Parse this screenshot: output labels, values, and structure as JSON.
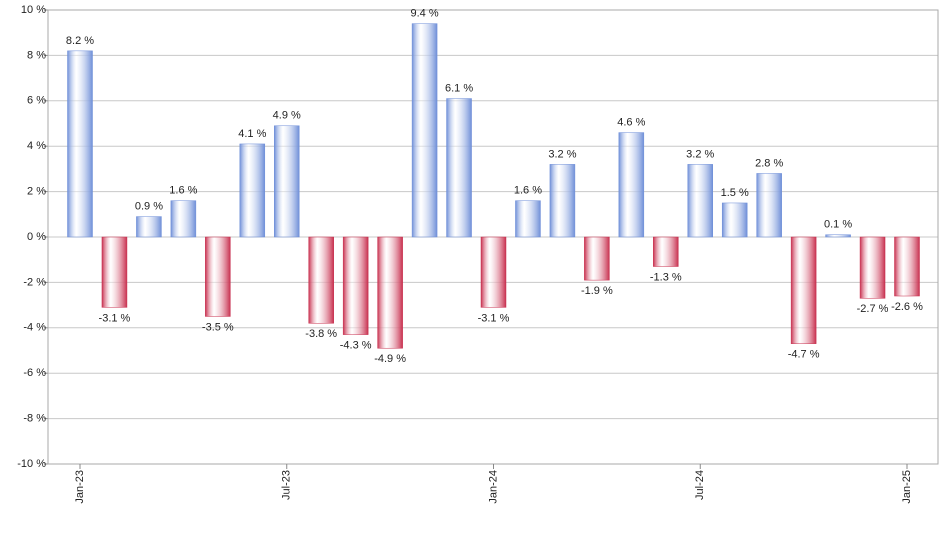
{
  "chart_data": {
    "type": "bar",
    "categories": [
      "Jan-23",
      null,
      null,
      null,
      null,
      null,
      "Jul-23",
      null,
      null,
      null,
      null,
      null,
      "Jan-24",
      null,
      null,
      null,
      null,
      null,
      "Jul-24",
      null,
      null,
      null,
      null,
      null,
      "Jan-25"
    ],
    "values": [
      8.2,
      -3.1,
      0.9,
      1.6,
      -3.5,
      4.1,
      4.9,
      -3.8,
      -4.3,
      -4.9,
      9.4,
      6.1,
      -3.1,
      1.6,
      3.2,
      -1.9,
      4.6,
      -1.3,
      3.2,
      1.5,
      2.8,
      -4.7,
      0.1,
      -2.7,
      -2.6
    ],
    "value_labels": [
      "8.2 %",
      "-3.1 %",
      "0.9 %",
      "1.6 %",
      "-3.5 %",
      "4.1 %",
      "4.9 %",
      "-3.8 %",
      "-4.3 %",
      "-4.9 %",
      "9.4 %",
      "6.1 %",
      "-3.1 %",
      "1.6 %",
      "3.2 %",
      "-1.9 %",
      "4.6 %",
      "-1.3 %",
      "3.2 %",
      "1.5 %",
      "2.8 %",
      "-4.7 %",
      "0.1 %",
      "-2.7 %",
      "-2.6 %"
    ],
    "positive_color": "#6f8fd8",
    "negative_color": "#c8304f",
    "ylim": [
      -10,
      10
    ],
    "yticks": [
      {
        "value": -10,
        "label": "-10 %"
      },
      {
        "value": -8,
        "label": "-8 %"
      },
      {
        "value": -6,
        "label": "-6 %"
      },
      {
        "value": -4,
        "label": "-4 %"
      },
      {
        "value": -2,
        "label": "-2 %"
      },
      {
        "value": 0,
        "label": "0 %"
      },
      {
        "value": 2,
        "label": "2 %"
      },
      {
        "value": 4,
        "label": "4 %"
      },
      {
        "value": 6,
        "label": "6 %"
      },
      {
        "value": 8,
        "label": "8 %"
      },
      {
        "value": 10,
        "label": "10 %"
      }
    ],
    "grid": true
  }
}
